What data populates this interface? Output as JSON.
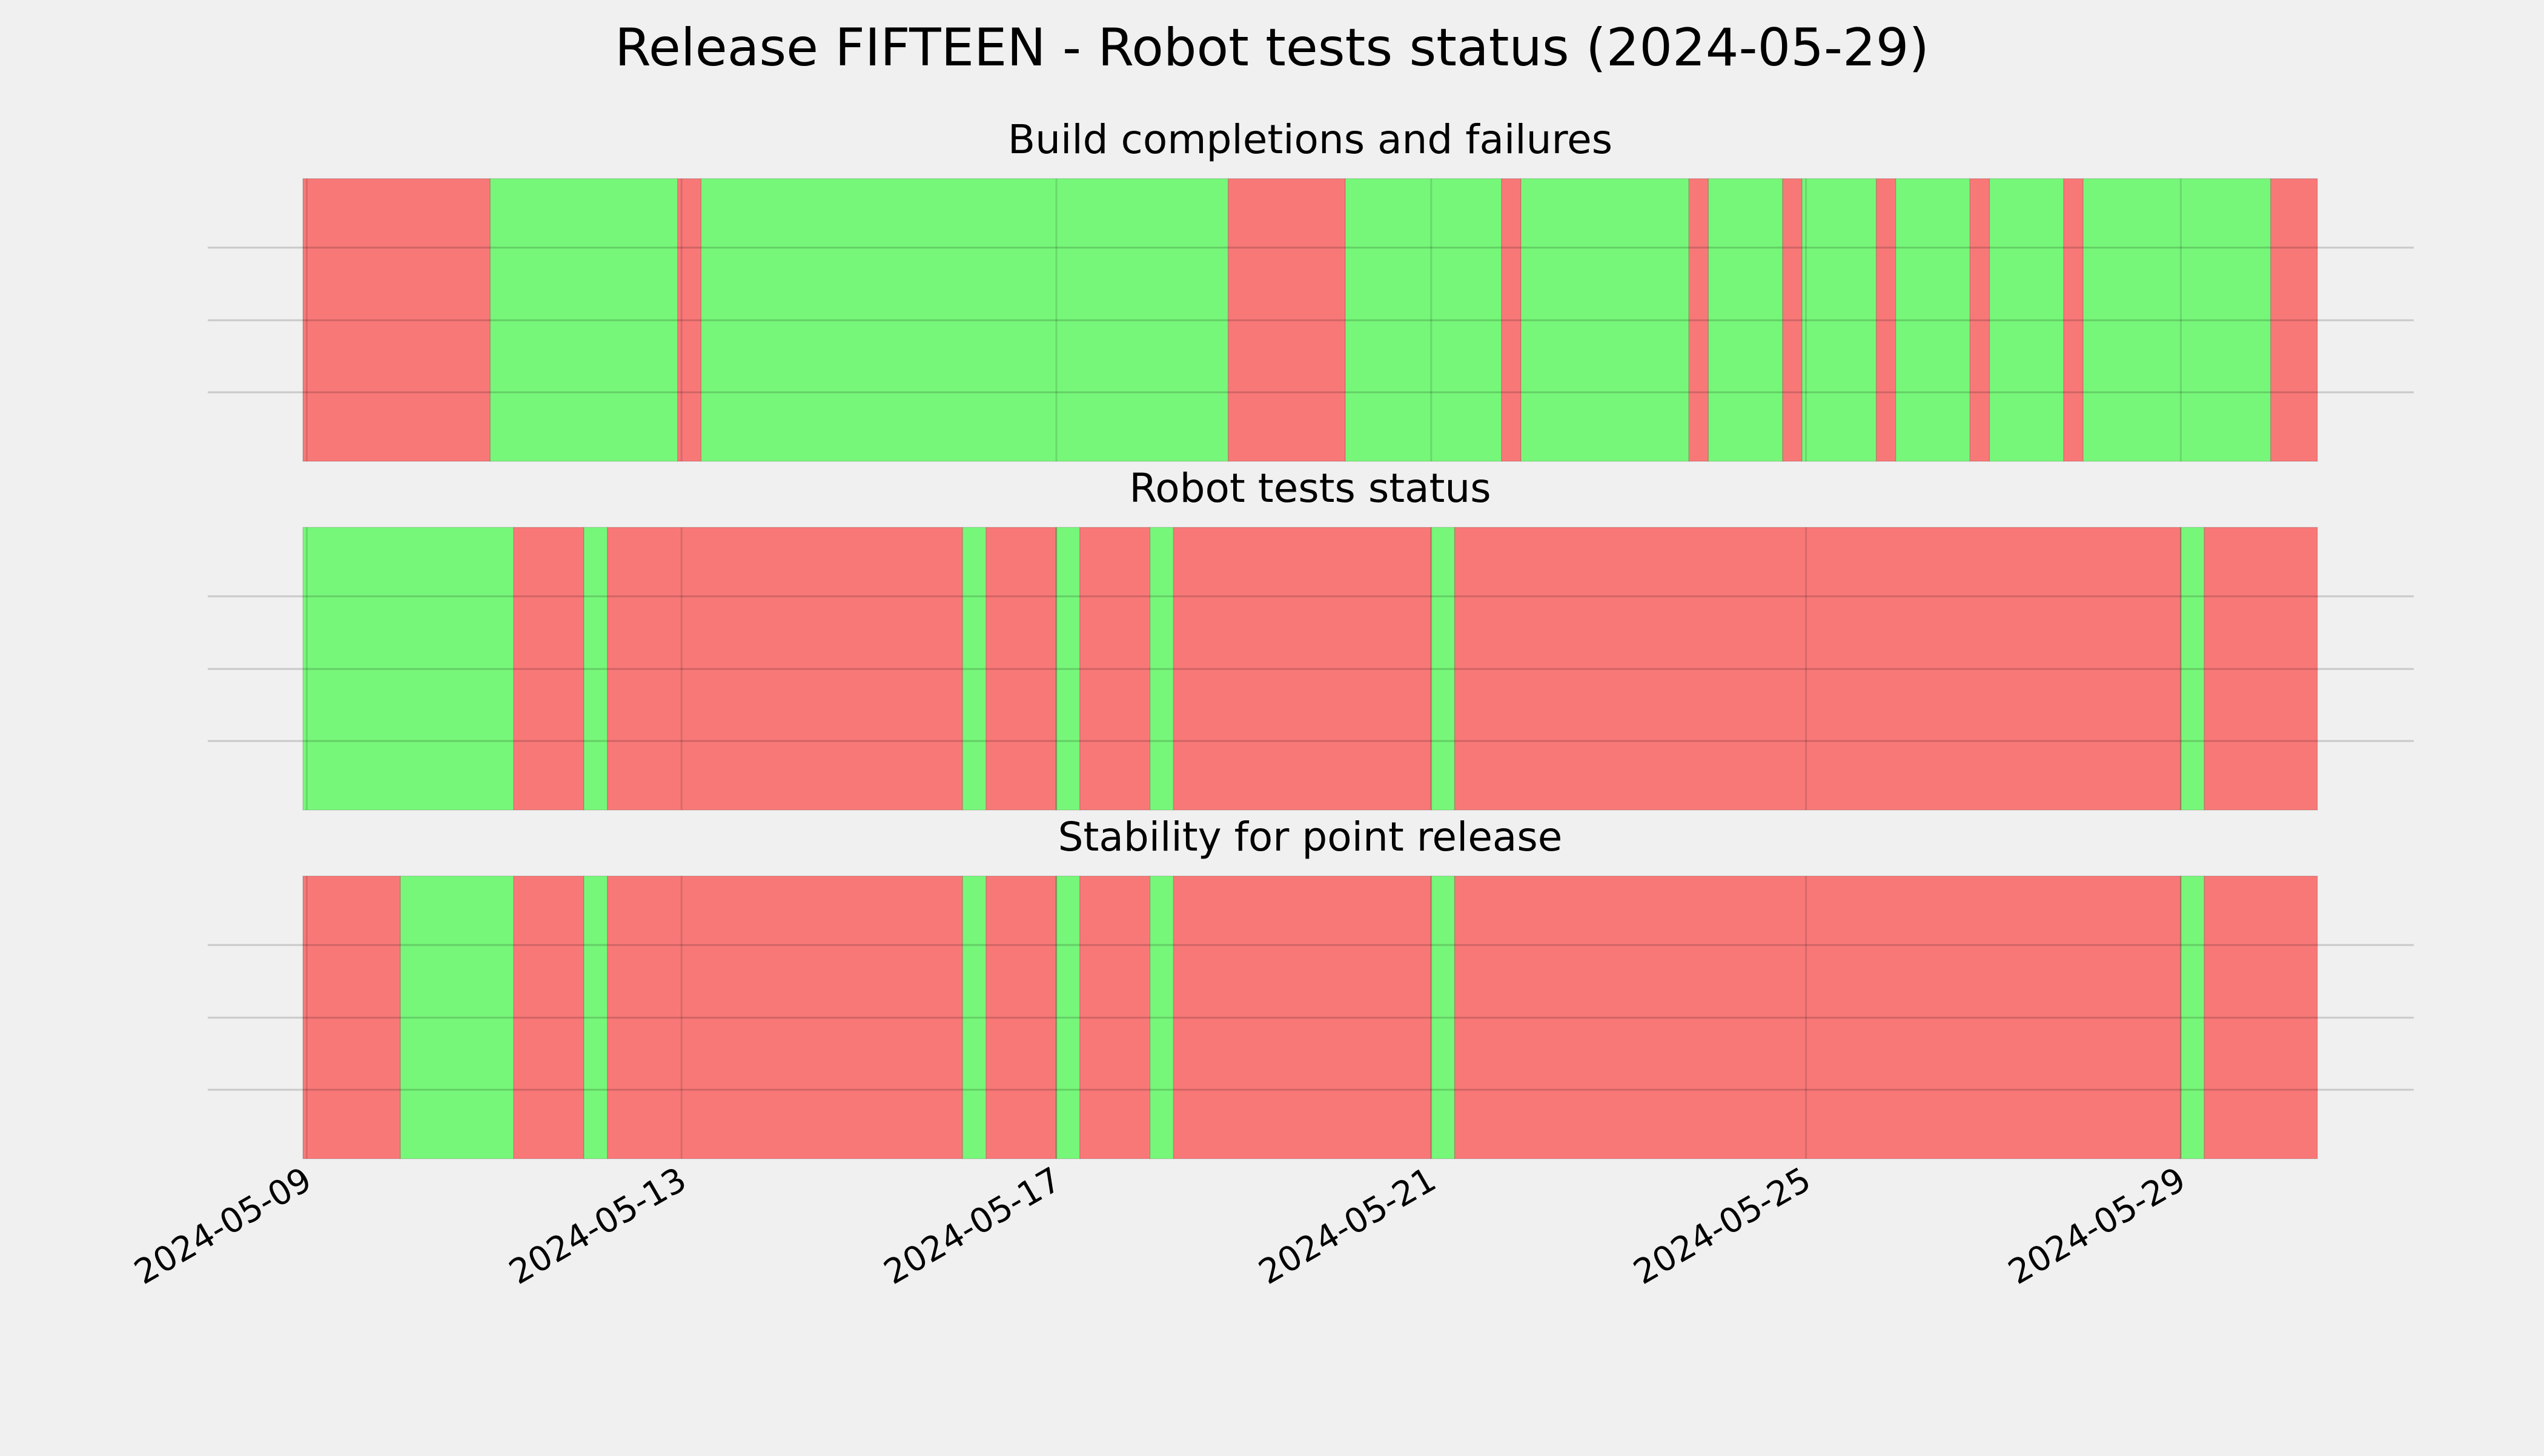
{
  "chart_data": {
    "type": "timeline",
    "title": "Release FIFTEEN - Robot tests status (2024-05-29)",
    "x_range": [
      "2024-05-08T23:00",
      "2024-05-30T11:00"
    ],
    "x_tick_labels": [
      "2024-05-09",
      "2024-05-13",
      "2024-05-17",
      "2024-05-21",
      "2024-05-25",
      "2024-05-29"
    ],
    "grid": true,
    "colors": {
      "pass": "#77f77a",
      "fail": "#f87878",
      "background": "#f0f0f0",
      "grid": "#cbcbcb"
    },
    "panels": [
      {
        "title": "Build completions and failures",
        "segments": [
          {
            "start": "2024-05-08T23:00",
            "end": "2024-05-10T23:00",
            "status": "fail"
          },
          {
            "start": "2024-05-10T23:00",
            "end": "2024-05-12T23:00",
            "status": "pass"
          },
          {
            "start": "2024-05-12T23:00",
            "end": "2024-05-13T05:00",
            "status": "fail"
          },
          {
            "start": "2024-05-13T05:00",
            "end": "2024-05-18T20:00",
            "status": "pass"
          },
          {
            "start": "2024-05-18T20:00",
            "end": "2024-05-20T02:00",
            "status": "fail"
          },
          {
            "start": "2024-05-20T02:00",
            "end": "2024-05-21T18:00",
            "status": "pass"
          },
          {
            "start": "2024-05-21T18:00",
            "end": "2024-05-21T23:00",
            "status": "fail"
          },
          {
            "start": "2024-05-21T23:00",
            "end": "2024-05-23T18:00",
            "status": "pass"
          },
          {
            "start": "2024-05-23T18:00",
            "end": "2024-05-23T23:00",
            "status": "fail"
          },
          {
            "start": "2024-05-23T23:00",
            "end": "2024-05-24T18:00",
            "status": "pass"
          },
          {
            "start": "2024-05-24T18:00",
            "end": "2024-05-24T23:00",
            "status": "fail"
          },
          {
            "start": "2024-05-24T23:00",
            "end": "2024-05-25T18:00",
            "status": "pass"
          },
          {
            "start": "2024-05-25T18:00",
            "end": "2024-05-25T23:00",
            "status": "fail"
          },
          {
            "start": "2024-05-25T23:00",
            "end": "2024-05-26T18:00",
            "status": "pass"
          },
          {
            "start": "2024-05-26T18:00",
            "end": "2024-05-26T23:00",
            "status": "fail"
          },
          {
            "start": "2024-05-26T23:00",
            "end": "2024-05-27T18:00",
            "status": "pass"
          },
          {
            "start": "2024-05-27T18:00",
            "end": "2024-05-27T23:00",
            "status": "fail"
          },
          {
            "start": "2024-05-27T23:00",
            "end": "2024-05-29T23:00",
            "status": "pass"
          },
          {
            "start": "2024-05-29T23:00",
            "end": "2024-05-30T11:00",
            "status": "fail"
          }
        ]
      },
      {
        "title": "Robot tests status",
        "segments": [
          {
            "start": "2024-05-08T23:00",
            "end": "2024-05-11T05:00",
            "status": "pass"
          },
          {
            "start": "2024-05-11T05:00",
            "end": "2024-05-11T23:00",
            "status": "fail"
          },
          {
            "start": "2024-05-11T23:00",
            "end": "2024-05-12T05:00",
            "status": "pass"
          },
          {
            "start": "2024-05-12T05:00",
            "end": "2024-05-16T00:00",
            "status": "fail"
          },
          {
            "start": "2024-05-16T00:00",
            "end": "2024-05-16T06:00",
            "status": "pass"
          },
          {
            "start": "2024-05-16T06:00",
            "end": "2024-05-17T00:00",
            "status": "fail"
          },
          {
            "start": "2024-05-17T00:00",
            "end": "2024-05-17T06:00",
            "status": "pass"
          },
          {
            "start": "2024-05-17T06:00",
            "end": "2024-05-18T00:00",
            "status": "fail"
          },
          {
            "start": "2024-05-18T00:00",
            "end": "2024-05-18T06:00",
            "status": "pass"
          },
          {
            "start": "2024-05-18T06:00",
            "end": "2024-05-21T00:00",
            "status": "fail"
          },
          {
            "start": "2024-05-21T00:00",
            "end": "2024-05-21T06:00",
            "status": "pass"
          },
          {
            "start": "2024-05-21T06:00",
            "end": "2024-05-29T00:00",
            "status": "fail"
          },
          {
            "start": "2024-05-29T00:00",
            "end": "2024-05-29T06:00",
            "status": "pass"
          },
          {
            "start": "2024-05-29T06:00",
            "end": "2024-05-30T11:00",
            "status": "fail"
          }
        ]
      },
      {
        "title": "Stability for point release",
        "segments": [
          {
            "start": "2024-05-08T23:00",
            "end": "2024-05-10T00:00",
            "status": "fail"
          },
          {
            "start": "2024-05-10T00:00",
            "end": "2024-05-11T05:00",
            "status": "pass"
          },
          {
            "start": "2024-05-11T05:00",
            "end": "2024-05-11T23:00",
            "status": "fail"
          },
          {
            "start": "2024-05-11T23:00",
            "end": "2024-05-12T05:00",
            "status": "pass"
          },
          {
            "start": "2024-05-12T05:00",
            "end": "2024-05-16T00:00",
            "status": "fail"
          },
          {
            "start": "2024-05-16T00:00",
            "end": "2024-05-16T06:00",
            "status": "pass"
          },
          {
            "start": "2024-05-16T06:00",
            "end": "2024-05-17T00:00",
            "status": "fail"
          },
          {
            "start": "2024-05-17T00:00",
            "end": "2024-05-17T06:00",
            "status": "pass"
          },
          {
            "start": "2024-05-17T06:00",
            "end": "2024-05-18T00:00",
            "status": "fail"
          },
          {
            "start": "2024-05-18T00:00",
            "end": "2024-05-18T06:00",
            "status": "pass"
          },
          {
            "start": "2024-05-18T06:00",
            "end": "2024-05-21T00:00",
            "status": "fail"
          },
          {
            "start": "2024-05-21T00:00",
            "end": "2024-05-21T06:00",
            "status": "pass"
          },
          {
            "start": "2024-05-21T06:00",
            "end": "2024-05-29T00:00",
            "status": "fail"
          },
          {
            "start": "2024-05-29T00:00",
            "end": "2024-05-29T06:00",
            "status": "pass"
          },
          {
            "start": "2024-05-29T06:00",
            "end": "2024-05-30T11:00",
            "status": "fail"
          }
        ]
      }
    ]
  }
}
